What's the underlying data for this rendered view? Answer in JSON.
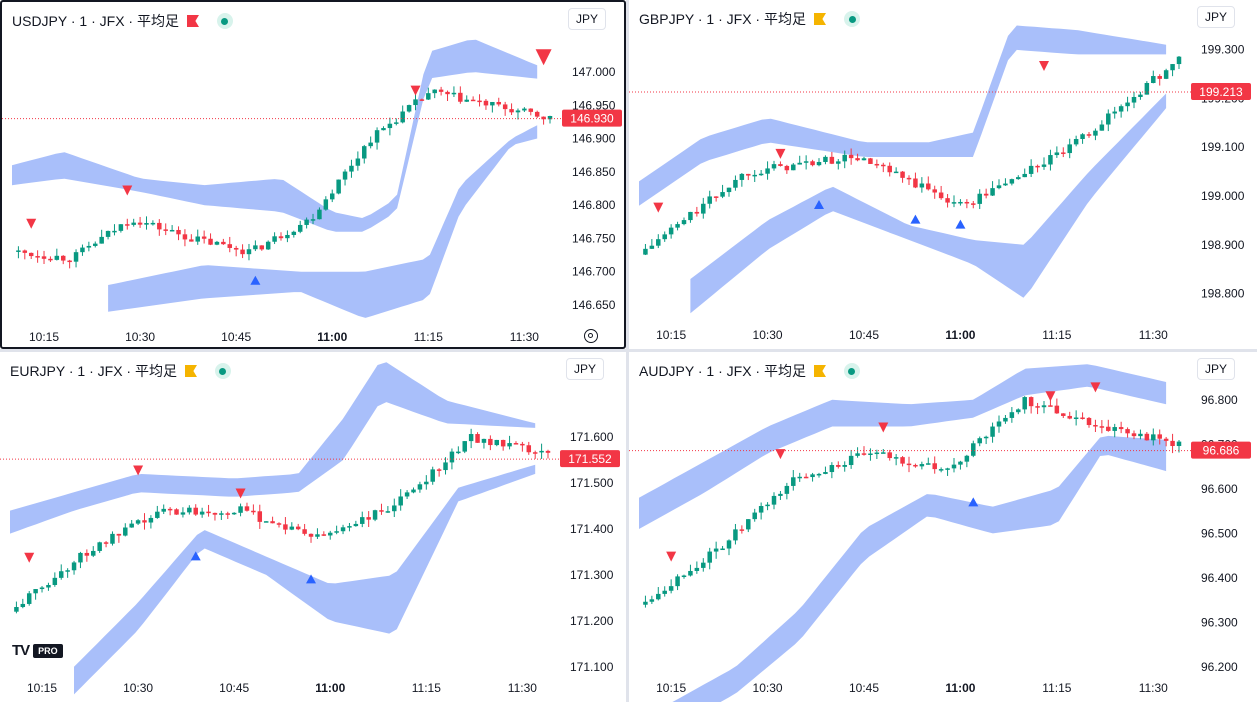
{
  "panels": [
    {
      "id": "usdjpy",
      "title": "USDJPY · 1 · JFX · 平均足",
      "flag": "red",
      "currency": "JPY",
      "active": true,
      "box": [
        0,
        0,
        626,
        349
      ],
      "price_label": "146.930",
      "price": 146.93,
      "chart_data": {
        "type": "candlestick",
        "ylim": [
          146.62,
          147.06
        ],
        "yticks": [
          "147.000",
          "146.950",
          "146.900",
          "146.850",
          "146.800",
          "146.750",
          "146.700",
          "146.650"
        ],
        "xticks": [
          "10:15",
          "10:30",
          "10:45",
          "11:00",
          "11:15",
          "11:30"
        ],
        "bold_tick": "11:00",
        "x_start_min": 10,
        "x_end_min": 94,
        "keys": [
          [
            146.73,
            146.8
          ],
          [
            146.72,
            146.74
          ],
          [
            146.78,
            146.83
          ],
          [
            146.75,
            146.77
          ],
          [
            146.73,
            146.74
          ],
          [
            146.78,
            146.82
          ],
          [
            146.9,
            146.92
          ],
          [
            146.97,
            146.98
          ],
          [
            146.95,
            146.96
          ],
          [
            146.93,
            146.93
          ]
        ],
        "up_marks": [
          [
            38,
            146.7
          ]
        ],
        "down_marks": [
          [
            3,
            146.76
          ],
          [
            18,
            146.81
          ],
          [
            63,
            146.96
          ],
          [
            83,
            147.01
          ]
        ],
        "band_top_upper": [
          [
            0,
            146.86
          ],
          [
            8,
            146.88
          ],
          [
            20,
            146.84
          ],
          [
            30,
            146.83
          ],
          [
            42,
            146.84
          ],
          [
            50,
            146.79
          ],
          [
            55,
            146.78
          ],
          [
            60,
            146.81
          ],
          [
            65,
            147.03
          ],
          [
            72,
            147.05
          ],
          [
            82,
            147.01
          ]
        ],
        "band_top_lower": [
          [
            0,
            146.83
          ],
          [
            8,
            146.84
          ],
          [
            20,
            146.82
          ],
          [
            30,
            146.8
          ],
          [
            42,
            146.79
          ],
          [
            50,
            146.76
          ],
          [
            55,
            146.76
          ],
          [
            60,
            146.79
          ],
          [
            65,
            146.99
          ],
          [
            72,
            147.0
          ],
          [
            82,
            146.99
          ]
        ],
        "band_bot_upper": [
          [
            15,
            146.68
          ],
          [
            30,
            146.71
          ],
          [
            45,
            146.7
          ],
          [
            55,
            146.7
          ],
          [
            65,
            146.72
          ],
          [
            70,
            146.83
          ],
          [
            78,
            146.9
          ],
          [
            82,
            146.92
          ]
        ],
        "band_bot_lower": [
          [
            15,
            146.64
          ],
          [
            30,
            146.66
          ],
          [
            45,
            146.67
          ],
          [
            55,
            146.63
          ],
          [
            65,
            146.66
          ],
          [
            70,
            146.79
          ],
          [
            78,
            146.89
          ],
          [
            82,
            146.9
          ]
        ]
      }
    },
    {
      "id": "gbpjpy",
      "title": "GBPJPY · 1 · JFX · 平均足",
      "flag": "orange",
      "currency": "JPY",
      "active": false,
      "box": [
        629,
        0,
        628,
        349
      ],
      "price_label": "199.213",
      "price": 199.213,
      "chart_data": {
        "type": "candlestick",
        "ylim": [
          198.74,
          199.34
        ],
        "yticks": [
          "199.300",
          "199.200",
          "199.100",
          "199.000",
          "198.900",
          "198.800"
        ],
        "xticks": [
          "10:15",
          "10:30",
          "10:45",
          "11:00",
          "11:15",
          "11:30"
        ],
        "bold_tick": "11:00",
        "x_start_min": 10,
        "x_end_min": 94,
        "keys": [
          [
            198.88,
            199.0
          ],
          [
            199.05,
            199.06
          ],
          [
            199.08,
            199.04
          ],
          [
            198.98,
            198.98
          ],
          [
            199.1,
            199.26
          ],
          [
            199.28,
            199.22
          ]
        ],
        "up_marks": [
          [
            28,
            199.0
          ],
          [
            43,
            198.97
          ],
          [
            50,
            198.96
          ]
        ],
        "down_marks": [
          [
            3,
            198.96
          ],
          [
            22,
            199.07
          ],
          [
            63,
            199.25
          ]
        ],
        "band_top_upper": [
          [
            0,
            199.03
          ],
          [
            10,
            199.12
          ],
          [
            20,
            199.16
          ],
          [
            35,
            199.11
          ],
          [
            45,
            199.11
          ],
          [
            52,
            199.13
          ],
          [
            58,
            199.35
          ],
          [
            68,
            199.34
          ],
          [
            82,
            199.31
          ]
        ],
        "band_top_lower": [
          [
            0,
            198.98
          ],
          [
            10,
            199.07
          ],
          [
            20,
            199.11
          ],
          [
            35,
            199.08
          ],
          [
            45,
            199.08
          ],
          [
            52,
            199.08
          ],
          [
            58,
            199.3
          ],
          [
            68,
            199.29
          ],
          [
            82,
            199.29
          ]
        ],
        "band_bot_upper": [
          [
            8,
            198.83
          ],
          [
            20,
            198.95
          ],
          [
            30,
            199.02
          ],
          [
            42,
            198.94
          ],
          [
            52,
            198.91
          ],
          [
            60,
            198.9
          ],
          [
            70,
            199.05
          ],
          [
            82,
            199.21
          ]
        ],
        "band_bot_lower": [
          [
            8,
            198.76
          ],
          [
            20,
            198.89
          ],
          [
            30,
            198.97
          ],
          [
            42,
            198.91
          ],
          [
            52,
            198.86
          ],
          [
            60,
            198.79
          ],
          [
            70,
            198.99
          ],
          [
            82,
            199.18
          ]
        ]
      }
    },
    {
      "id": "eurjpy",
      "title": "EURJPY · 1 · JFX · 平均足",
      "flag": "orange",
      "currency": "JPY",
      "active": false,
      "box": [
        0,
        352,
        626,
        350
      ],
      "price_label": "171.552",
      "price": 171.552,
      "chart_data": {
        "type": "candlestick",
        "ylim": [
          171.08,
          171.72
        ],
        "yticks": [
          "171.600",
          "171.500",
          "171.400",
          "171.300",
          "171.200",
          "171.100"
        ],
        "xticks": [
          "10:15",
          "10:30",
          "10:45",
          "11:00",
          "11:15",
          "11:30"
        ],
        "bold_tick": "11:00",
        "x_start_min": 10,
        "x_end_min": 94,
        "keys": [
          [
            171.22,
            171.3
          ],
          [
            171.35,
            171.44
          ],
          [
            171.44,
            171.38
          ],
          [
            171.44,
            171.45
          ],
          [
            171.38,
            171.31
          ],
          [
            171.45,
            171.55
          ],
          [
            171.6,
            171.58
          ],
          [
            171.56,
            171.56
          ]
        ],
        "up_marks": [
          [
            29,
            171.36
          ],
          [
            47,
            171.31
          ]
        ],
        "down_marks": [
          [
            3,
            171.32
          ],
          [
            20,
            171.51
          ],
          [
            36,
            171.46
          ]
        ],
        "band_top_upper": [
          [
            0,
            171.44
          ],
          [
            10,
            171.48
          ],
          [
            20,
            171.52
          ],
          [
            35,
            171.51
          ],
          [
            45,
            171.52
          ],
          [
            52,
            171.64
          ],
          [
            58,
            171.77
          ],
          [
            68,
            171.68
          ],
          [
            82,
            171.63
          ]
        ],
        "band_top_lower": [
          [
            0,
            171.39
          ],
          [
            10,
            171.44
          ],
          [
            20,
            171.48
          ],
          [
            35,
            171.47
          ],
          [
            45,
            171.48
          ],
          [
            52,
            171.55
          ],
          [
            58,
            171.68
          ],
          [
            68,
            171.63
          ],
          [
            82,
            171.62
          ]
        ],
        "band_bot_upper": [
          [
            10,
            171.1
          ],
          [
            20,
            171.24
          ],
          [
            30,
            171.4
          ],
          [
            40,
            171.34
          ],
          [
            50,
            171.28
          ],
          [
            60,
            171.3
          ],
          [
            70,
            171.49
          ],
          [
            82,
            171.54
          ]
        ],
        "band_bot_lower": [
          [
            10,
            171.04
          ],
          [
            20,
            171.18
          ],
          [
            30,
            171.36
          ],
          [
            40,
            171.3
          ],
          [
            50,
            171.2
          ],
          [
            60,
            171.17
          ],
          [
            70,
            171.46
          ],
          [
            82,
            171.52
          ]
        ]
      }
    },
    {
      "id": "audjpy",
      "title": "AUDJPY · 1 · JFX · 平均足",
      "flag": "orange",
      "currency": "JPY",
      "active": false,
      "box": [
        629,
        352,
        628,
        350
      ],
      "price_label": "96.686",
      "price": 96.686,
      "chart_data": {
        "type": "candlestick",
        "ylim": [
          96.18,
          96.84
        ],
        "yticks": [
          "96.800",
          "96.700",
          "96.600",
          "96.500",
          "96.400",
          "96.300",
          "96.200"
        ],
        "xticks": [
          "10:15",
          "10:30",
          "10:45",
          "11:00",
          "11:15",
          "11:30"
        ],
        "bold_tick": "11:00",
        "x_start_min": 10,
        "x_end_min": 94,
        "keys": [
          [
            96.34,
            96.4
          ],
          [
            96.46,
            96.62
          ],
          [
            96.62,
            96.7
          ],
          [
            96.68,
            96.64
          ],
          [
            96.64,
            96.72
          ],
          [
            96.8,
            96.78
          ],
          [
            96.74,
            96.7
          ],
          [
            96.7,
            96.69
          ]
        ],
        "up_marks": [
          [
            52,
            96.59
          ]
        ],
        "down_marks": [
          [
            5,
            96.43
          ],
          [
            22,
            96.66
          ],
          [
            38,
            96.72
          ],
          [
            64,
            96.79
          ],
          [
            71,
            96.81
          ]
        ],
        "band_top_upper": [
          [
            0,
            96.58
          ],
          [
            10,
            96.66
          ],
          [
            20,
            96.74
          ],
          [
            30,
            96.8
          ],
          [
            42,
            96.79
          ],
          [
            52,
            96.8
          ],
          [
            60,
            96.87
          ],
          [
            70,
            96.88
          ],
          [
            82,
            96.84
          ]
        ],
        "band_top_lower": [
          [
            0,
            96.51
          ],
          [
            10,
            96.59
          ],
          [
            20,
            96.68
          ],
          [
            30,
            96.74
          ],
          [
            42,
            96.74
          ],
          [
            52,
            96.76
          ],
          [
            60,
            96.81
          ],
          [
            70,
            96.83
          ],
          [
            82,
            96.79
          ]
        ],
        "band_bot_upper": [
          [
            5,
            96.12
          ],
          [
            15,
            96.2
          ],
          [
            25,
            96.33
          ],
          [
            35,
            96.51
          ],
          [
            45,
            96.59
          ],
          [
            55,
            96.56
          ],
          [
            65,
            96.6
          ],
          [
            72,
            96.72
          ],
          [
            82,
            96.71
          ]
        ],
        "band_bot_lower": [
          [
            5,
            96.06
          ],
          [
            15,
            96.14
          ],
          [
            25,
            96.26
          ],
          [
            35,
            96.44
          ],
          [
            45,
            96.54
          ],
          [
            55,
            96.5
          ],
          [
            65,
            96.52
          ],
          [
            72,
            96.68
          ],
          [
            82,
            96.64
          ]
        ]
      }
    }
  ],
  "colors": {
    "up": "#089981",
    "down": "#f23645",
    "band": "#a9bffa",
    "marker_up": "#2962ff",
    "marker_down": "#f23645",
    "axis_text": "#131722"
  },
  "logo": {
    "brand": "TV",
    "badge": "PRO"
  }
}
